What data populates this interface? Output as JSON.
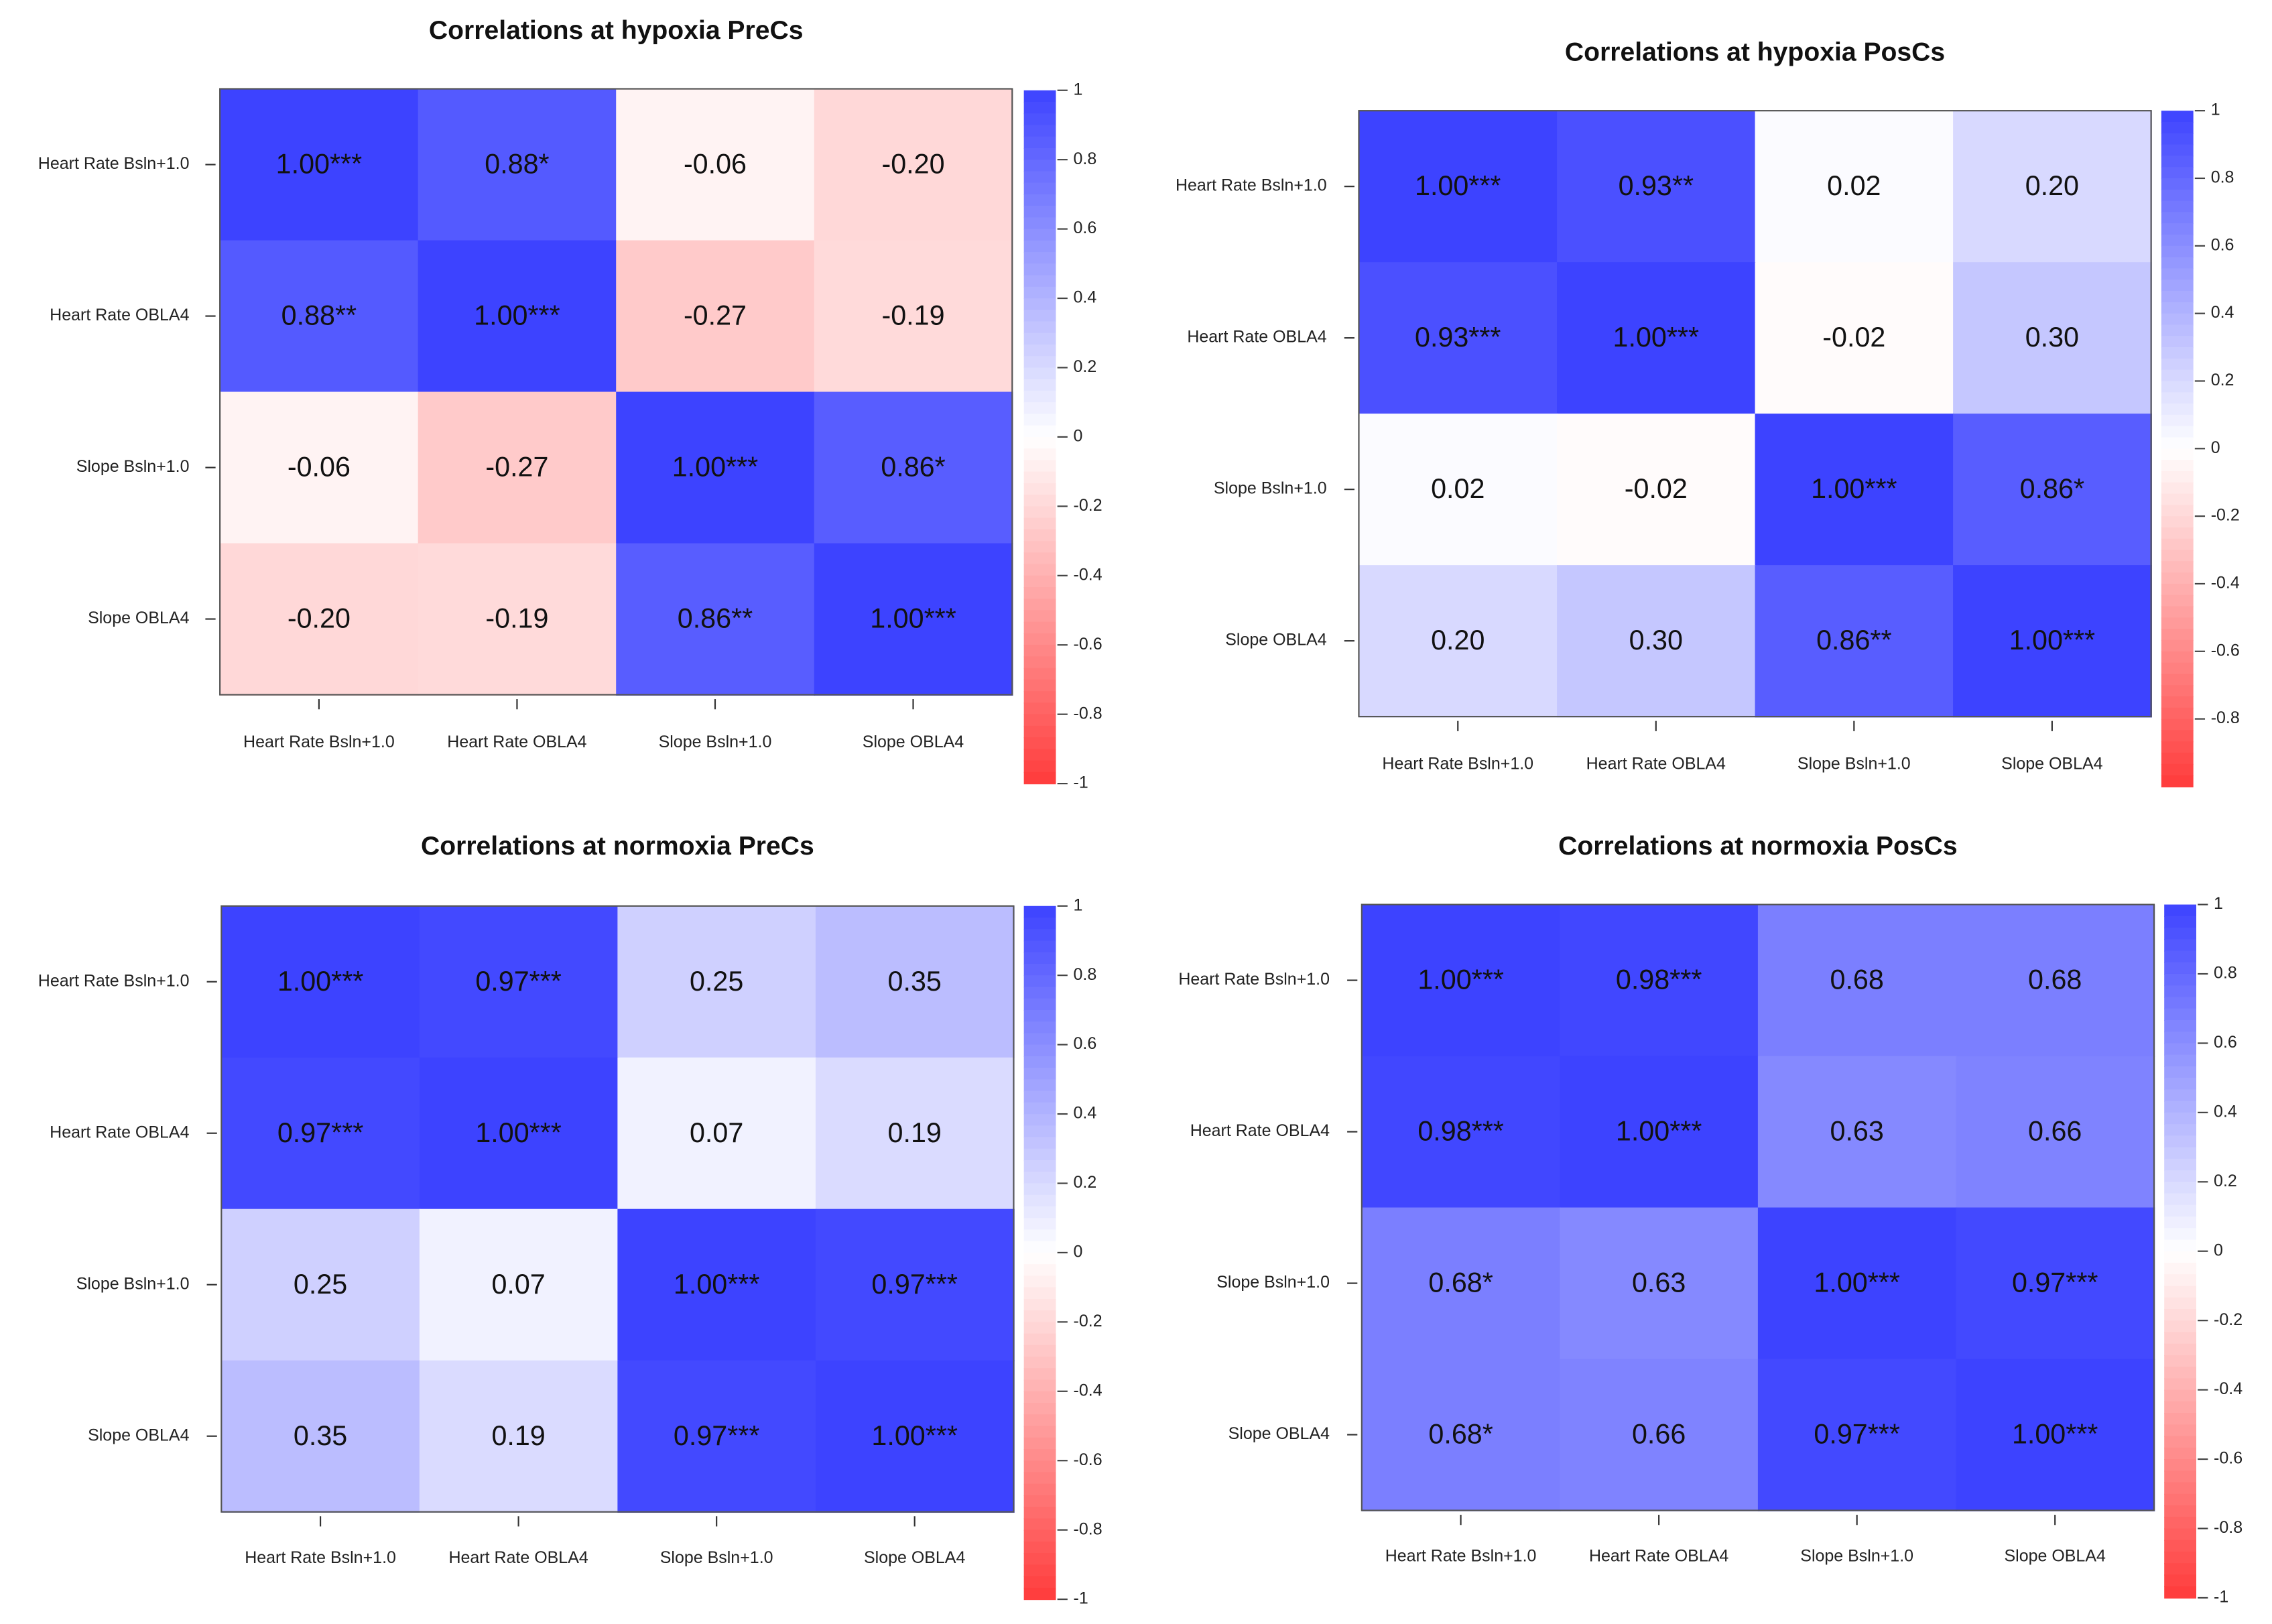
{
  "chart_data": [
    {
      "type": "heatmap",
      "title": "Correlations at hypoxia PreCs",
      "rows": [
        "Heart Rate Bsln+1.0",
        "Heart Rate OBLA4",
        "Slope Bsln+1.0",
        "Slope OBLA4"
      ],
      "columns": [
        "Heart Rate Bsln+1.0",
        "Heart Rate OBLA4",
        "Slope Bsln+1.0",
        "Slope OBLA4"
      ],
      "values": [
        [
          1.0,
          0.88,
          -0.06,
          -0.2
        ],
        [
          0.88,
          1.0,
          -0.27,
          -0.19
        ],
        [
          -0.06,
          -0.27,
          1.0,
          0.86
        ],
        [
          -0.2,
          -0.19,
          0.86,
          1.0
        ]
      ],
      "labels": [
        [
          "1.00***",
          "0.88*",
          "-0.06",
          "-0.20"
        ],
        [
          "0.88**",
          "1.00***",
          "-0.27",
          "-0.19"
        ],
        [
          "-0.06",
          "-0.27",
          "1.00***",
          "0.86*"
        ],
        [
          "-0.20",
          "-0.19",
          "0.86**",
          "1.00***"
        ]
      ],
      "colorbar": {
        "range": [
          -1,
          1
        ],
        "ticks": [
          "1",
          "0.8",
          "0.6",
          "0.4",
          "0.2",
          "0",
          "-0.2",
          "-0.4",
          "-0.6",
          "-0.8",
          "-1"
        ]
      }
    },
    {
      "type": "heatmap",
      "title": "Correlations at hypoxia PosCs",
      "rows": [
        "Heart Rate Bsln+1.0",
        "Heart Rate OBLA4",
        "Slope Bsln+1.0",
        "Slope OBLA4"
      ],
      "columns": [
        "Heart Rate Bsln+1.0",
        "Heart Rate OBLA4",
        "Slope Bsln+1.0",
        "Slope OBLA4"
      ],
      "values": [
        [
          1.0,
          0.93,
          0.02,
          0.2
        ],
        [
          0.93,
          1.0,
          -0.02,
          0.3
        ],
        [
          0.02,
          -0.02,
          1.0,
          0.86
        ],
        [
          0.2,
          0.3,
          0.86,
          1.0
        ]
      ],
      "labels": [
        [
          "1.00***",
          "0.93**",
          "0.02",
          "0.20"
        ],
        [
          "0.93***",
          "1.00***",
          "-0.02",
          "0.30"
        ],
        [
          "0.02",
          "-0.02",
          "1.00***",
          "0.86*"
        ],
        [
          "0.20",
          "0.30",
          "0.86**",
          "1.00***"
        ]
      ],
      "colorbar": {
        "range": [
          -1,
          1
        ],
        "ticks": [
          "1",
          "0.8",
          "0.6",
          "0.4",
          "0.2",
          "0",
          "-0.2",
          "-0.4",
          "-0.6",
          "-0.8"
        ]
      }
    },
    {
      "type": "heatmap",
      "title": "Correlations at normoxia PreCs",
      "rows": [
        "Heart Rate Bsln+1.0",
        "Heart Rate OBLA4",
        "Slope Bsln+1.0",
        "Slope OBLA4"
      ],
      "columns": [
        "Heart Rate Bsln+1.0",
        "Heart Rate OBLA4",
        "Slope Bsln+1.0",
        "Slope OBLA4"
      ],
      "values": [
        [
          1.0,
          0.97,
          0.25,
          0.35
        ],
        [
          0.97,
          1.0,
          0.07,
          0.19
        ],
        [
          0.25,
          0.07,
          1.0,
          0.97
        ],
        [
          0.35,
          0.19,
          0.97,
          1.0
        ]
      ],
      "labels": [
        [
          "1.00***",
          "0.97***",
          "0.25",
          "0.35"
        ],
        [
          "0.97***",
          "1.00***",
          "0.07",
          "0.19"
        ],
        [
          "0.25",
          "0.07",
          "1.00***",
          "0.97***"
        ],
        [
          "0.35",
          "0.19",
          "0.97***",
          "1.00***"
        ]
      ],
      "colorbar": {
        "range": [
          -1,
          1
        ],
        "ticks": [
          "1",
          "0.8",
          "0.6",
          "0.4",
          "0.2",
          "0",
          "-0.2",
          "-0.4",
          "-0.6",
          "-0.8",
          "-1"
        ]
      }
    },
    {
      "type": "heatmap",
      "title": "Correlations at normoxia PosCs",
      "rows": [
        "Heart Rate Bsln+1.0",
        "Heart Rate OBLA4",
        "Slope Bsln+1.0",
        "Slope OBLA4"
      ],
      "columns": [
        "Heart Rate Bsln+1.0",
        "Heart Rate OBLA4",
        "Slope Bsln+1.0",
        "Slope OBLA4"
      ],
      "values": [
        [
          1.0,
          0.98,
          0.68,
          0.68
        ],
        [
          0.98,
          1.0,
          0.63,
          0.66
        ],
        [
          0.68,
          0.63,
          1.0,
          0.97
        ],
        [
          0.68,
          0.66,
          0.97,
          1.0
        ]
      ],
      "labels": [
        [
          "1.00***",
          "0.98***",
          "0.68",
          "0.68"
        ],
        [
          "0.98***",
          "1.00***",
          "0.63",
          "0.66"
        ],
        [
          "0.68*",
          "0.63",
          "1.00***",
          "0.97***"
        ],
        [
          "0.68*",
          "0.66",
          "0.97***",
          "1.00***"
        ]
      ],
      "colorbar": {
        "range": [
          -1,
          1
        ],
        "ticks": [
          "1",
          "0.8",
          "0.6",
          "0.4",
          "0.2",
          "0",
          "-0.2",
          "-0.4",
          "-0.6",
          "-0.8",
          "-1"
        ]
      }
    }
  ],
  "colors": {
    "positive": "#3d43ff",
    "neutral": "#ffffff",
    "negative": "#ff3b3b",
    "border": "#555555"
  }
}
